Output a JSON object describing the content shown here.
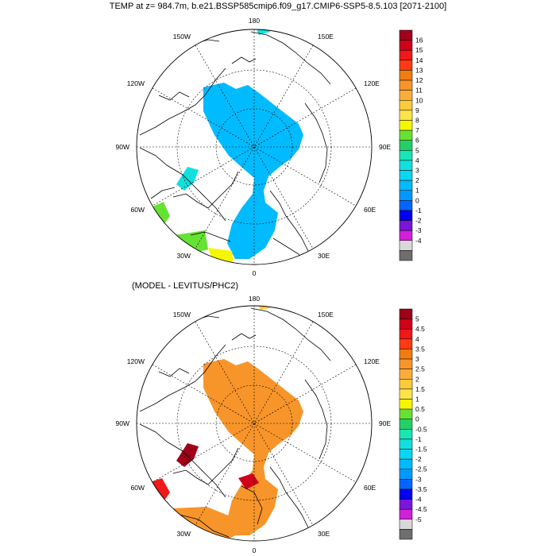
{
  "title": "TEMP at z= 984.7m, b.e21.BSSP585cmip6.f09_g17.CMIP6-SSP5-8.5.103 [2071-2100]",
  "panels": [
    {
      "name": "absolute",
      "subtitle": "",
      "lon_labels": {
        "top": "180",
        "bottom": "0",
        "left": "90W",
        "right": "90E",
        "tl": "150W",
        "tr": "150E",
        "ul": "120W",
        "ur": "120E",
        "ll": "60W",
        "lr": "60E",
        "bl": "30W",
        "br": "30E"
      },
      "colorbar": {
        "labels": [
          "16",
          "15",
          "14",
          "13",
          "12",
          "11",
          "10",
          "9",
          "8",
          "7",
          "6",
          "5",
          "4",
          "3",
          "2",
          "1",
          "0",
          "-1",
          "-2",
          "-3",
          "-4"
        ],
        "colors": [
          "#a0001a",
          "#d0001a",
          "#f01818",
          "#ff3a14",
          "#f07d10",
          "#f7952a",
          "#f9ad3a",
          "#fbcb3c",
          "#fbe34a",
          "#f6f600",
          "#66e233",
          "#22d066",
          "#19e6b4",
          "#13dfdf",
          "#0ad6f2",
          "#00bbff",
          "#0099ff",
          "#0066ff",
          "#0000ee",
          "#7a16d8",
          "#d020d8",
          "#d8d8d8",
          "#6e6e6e"
        ]
      }
    },
    {
      "name": "difference",
      "subtitle": "(MODEL - LEVITUS/PHC2)",
      "lon_labels": {
        "top": "180",
        "bottom": "0",
        "left": "90W",
        "right": "90E",
        "tl": "150W",
        "tr": "150E",
        "ul": "120W",
        "ur": "120E",
        "ll": "60W",
        "lr": "60E",
        "bl": "30W",
        "br": "30E"
      },
      "colorbar": {
        "labels": [
          "5",
          "4.5",
          "4",
          "3.5",
          "3",
          "2.5",
          "2",
          "1.5",
          "1",
          "0.5",
          "0",
          "-0.5",
          "-1",
          "-1.5",
          "-2",
          "-2.5",
          "-3",
          "-3.5",
          "-4",
          "-4.5",
          "-5"
        ],
        "colors": [
          "#a0001a",
          "#d0001a",
          "#f01818",
          "#ff3a14",
          "#f07d10",
          "#f7952a",
          "#f9ad3a",
          "#fbcb3c",
          "#fbe34a",
          "#f6f600",
          "#66e233",
          "#22d066",
          "#19e6b4",
          "#13dfdf",
          "#0ad6f2",
          "#00bbff",
          "#0099ff",
          "#0066ff",
          "#0000ee",
          "#7a16d8",
          "#d020d8",
          "#d8d8d8",
          "#6e6e6e"
        ]
      }
    }
  ],
  "colors": {
    "ocean_fill_top": "#00bbff",
    "ocean_fill_bottom": "#f7952a"
  }
}
